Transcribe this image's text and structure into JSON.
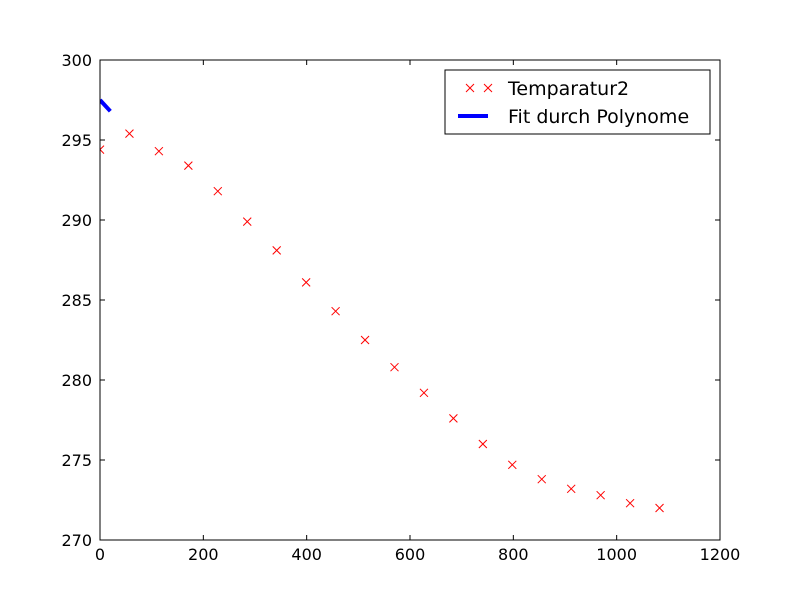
{
  "chart_data": {
    "type": "scatter",
    "title": "",
    "xlabel": "",
    "ylabel": "",
    "xlim": [
      0,
      1200
    ],
    "ylim": [
      270,
      300
    ],
    "xticks": [
      0,
      200,
      400,
      600,
      800,
      1000,
      1200
    ],
    "yticks": [
      270,
      275,
      280,
      285,
      290,
      295,
      300
    ],
    "grid": false,
    "legend_position": "top-right",
    "series": [
      {
        "name": "Temparatur2",
        "type": "scatter",
        "marker": "x",
        "color": "#ff0000",
        "x": [
          0,
          57,
          114,
          171,
          228,
          285,
          342,
          399,
          456,
          513,
          570,
          627,
          684,
          741,
          798,
          855,
          912,
          969,
          1026,
          1083
        ],
        "y": [
          294.4,
          295.4,
          294.3,
          293.4,
          291.8,
          289.9,
          288.1,
          286.1,
          284.3,
          282.5,
          280.8,
          279.2,
          277.6,
          276.0,
          274.7,
          273.8,
          273.2,
          272.8,
          272.3,
          272.0
        ]
      },
      {
        "name": "Fit durch Polynome",
        "type": "line",
        "color": "#0000ff",
        "x": [
          0,
          20
        ],
        "y": [
          297.5,
          296.8
        ]
      }
    ]
  }
}
